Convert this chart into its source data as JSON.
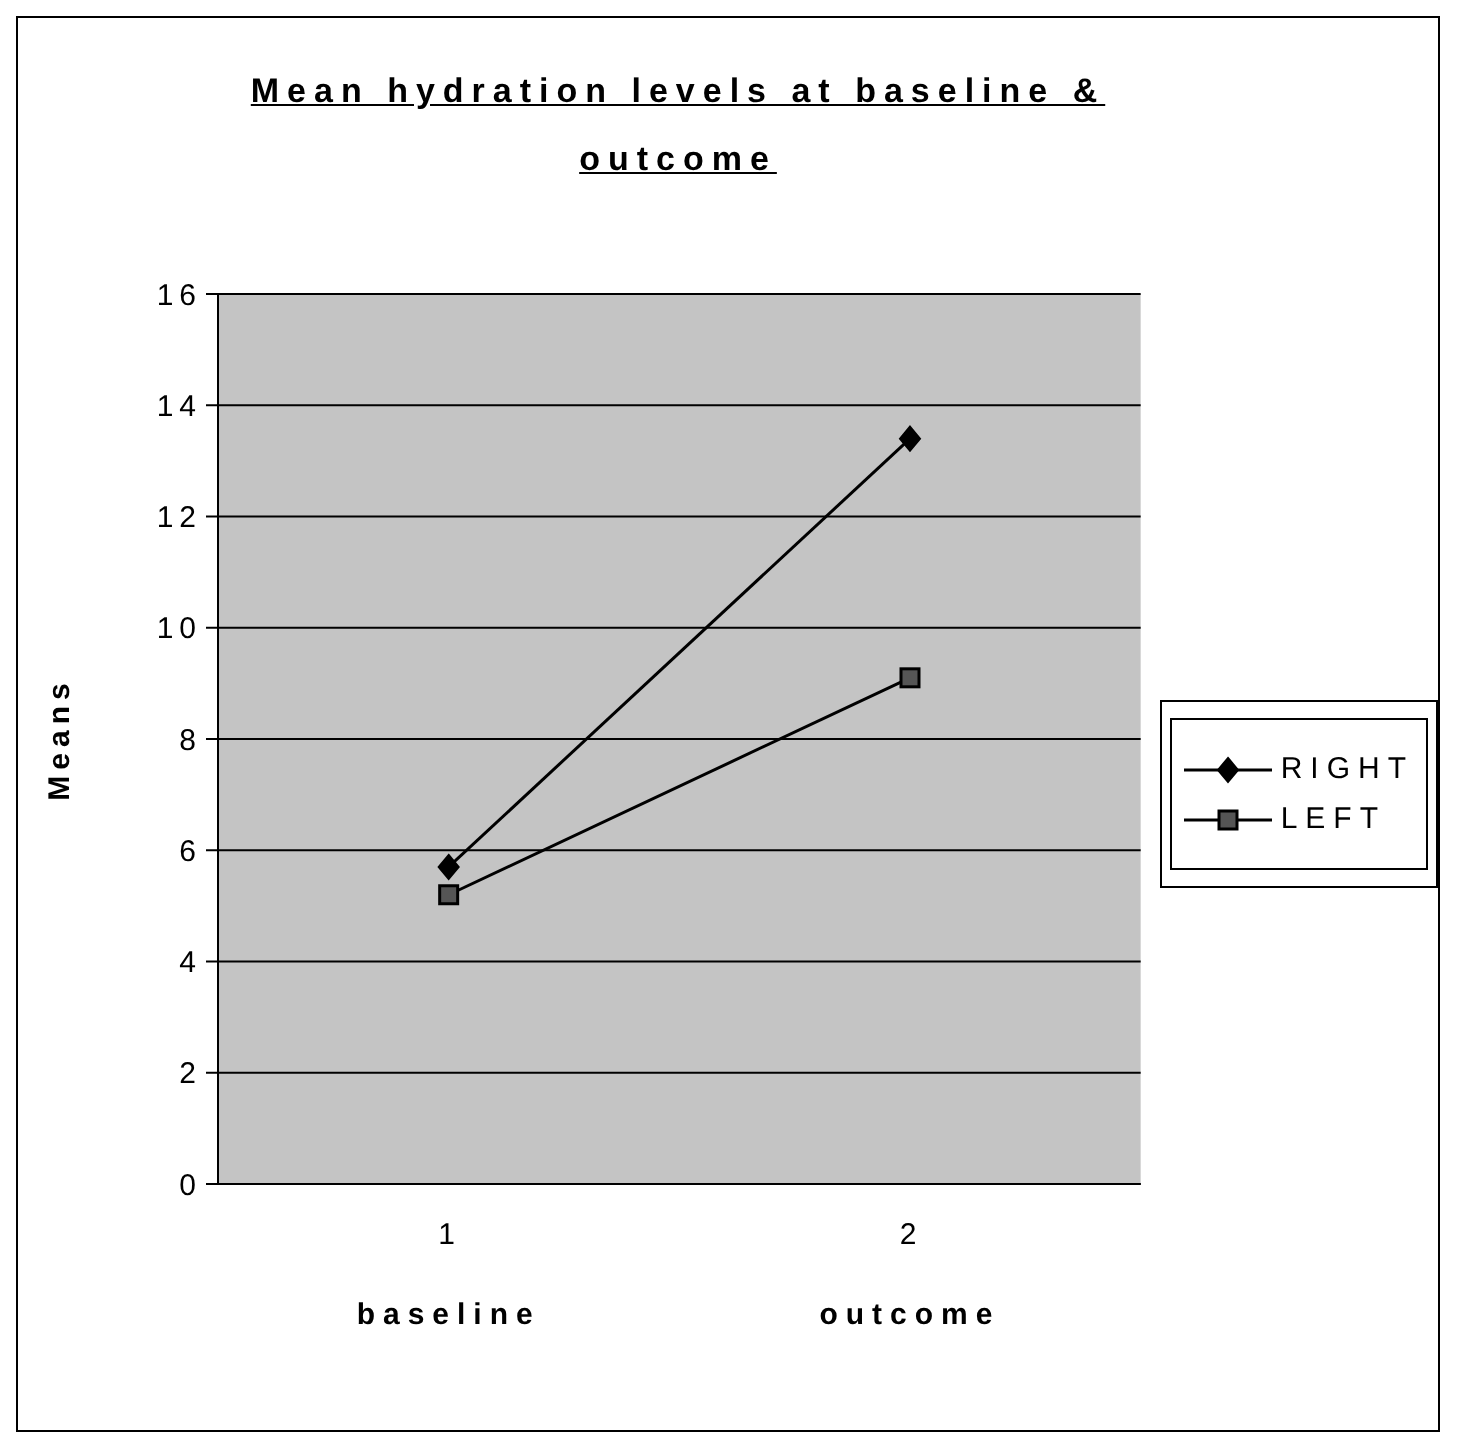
{
  "chart_data": {
    "type": "line",
    "title": "Mean hydration levels at baseline & outcome",
    "ylabel": "Means",
    "categories": [
      "1\nbaseline",
      "2\noutcome"
    ],
    "series": [
      {
        "name": "RIGHT",
        "color": "#000000",
        "marker": "diamond",
        "values": [
          5.7,
          13.4
        ]
      },
      {
        "name": "LEFT",
        "color": "#000000",
        "marker": "square",
        "values": [
          5.2,
          9.1
        ]
      }
    ],
    "ylim": [
      0,
      16
    ],
    "yticks": [
      0,
      2,
      4,
      6,
      8,
      10,
      12,
      14,
      16
    ],
    "grid": "y",
    "legend": "right",
    "line_style": "solid"
  }
}
